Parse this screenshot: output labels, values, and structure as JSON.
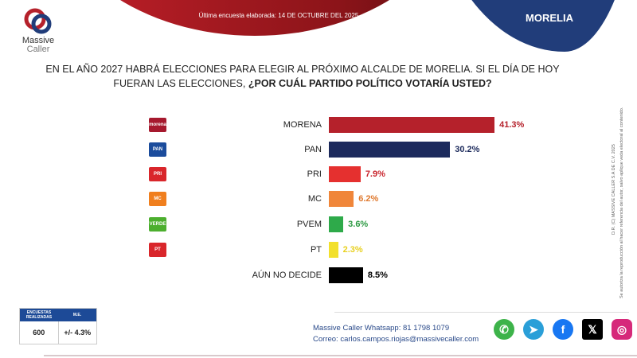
{
  "header": {
    "date_text": "Última encuesta elaborada: 14 DE OCTUBRE DEL 2025",
    "city": "MORELIA",
    "logo_line1": "Massive",
    "logo_line2": "Caller"
  },
  "question": {
    "normal": "EN EL AÑO 2027 HABRÁ ELECCIONES PARA ELEGIR AL PRÓXIMO ALCALDE DE MORELIA. SI EL DÍA DE HOY FUERAN LAS ELECCIONES, ",
    "bold": "¿POR CUÁL PARTIDO POLÍTICO VOTARÍA USTED?"
  },
  "side_text": {
    "line1": "D.R. (C) MASSIVE CALLER S.A DE C.V. 2025",
    "line2": "Se autoriza la reproducción al hacer referencia del autor, salvo aplique veda electoral al contenido."
  },
  "chart_data": {
    "type": "bar",
    "orientation": "horizontal",
    "xlim": [
      0,
      50
    ],
    "categories": [
      "MORENA",
      "PAN",
      "PRI",
      "MC",
      "PVEM",
      "PT",
      "AÚN NO DECIDE"
    ],
    "values": [
      41.3,
      30.2,
      7.9,
      6.2,
      3.6,
      2.3,
      8.5
    ],
    "labels": [
      "41.3%",
      "30.2%",
      "7.9%",
      "6.2%",
      "3.6%",
      "2.3%",
      "8.5%"
    ],
    "colors": [
      "#b5212b",
      "#1c2a5c",
      "#e5302f",
      "#f0863a",
      "#2eaa4a",
      "#f2e02c",
      "#000000"
    ],
    "label_colors": [
      "#b5212b",
      "#1c2a5c",
      "#c8232b",
      "#e07a30",
      "#2e9a44",
      "#e8d020",
      "#000000"
    ],
    "party_logos": [
      {
        "text": "morena",
        "bg": "#a6192e"
      },
      {
        "text": "PAN",
        "bg": "#1b4c9c"
      },
      {
        "text": "PRI",
        "bg": "#d9262b"
      },
      {
        "text": "MC",
        "bg": "#f07f1e"
      },
      {
        "text": "VERDE",
        "bg": "#4caf2e"
      },
      {
        "text": "PT",
        "bg": "#d9262b"
      }
    ]
  },
  "stats": {
    "col1_header": "ENCUESTAS REALIZADAS",
    "col2_header": "M.E.",
    "col1_value": "600",
    "col2_value": "+/- 4.3%"
  },
  "contact": {
    "whatsapp_label": "Massive Caller Whatsapp: ",
    "whatsapp": "81 1798 1079",
    "email_label": "Correo: ",
    "email": "carlos.campos.riojas@massivecaller.com"
  },
  "social": [
    {
      "icon": "whatsapp-icon",
      "glyph": "✆",
      "color": "#3db34a"
    },
    {
      "icon": "telegram-icon",
      "glyph": "➤",
      "color": "#2a9fd8"
    },
    {
      "icon": "facebook-icon",
      "glyph": "f",
      "color": "#1877f2"
    },
    {
      "icon": "x-icon",
      "glyph": "𝕏",
      "color": "#000000"
    },
    {
      "icon": "instagram-icon",
      "glyph": "◎",
      "color": "#d6297a"
    }
  ]
}
